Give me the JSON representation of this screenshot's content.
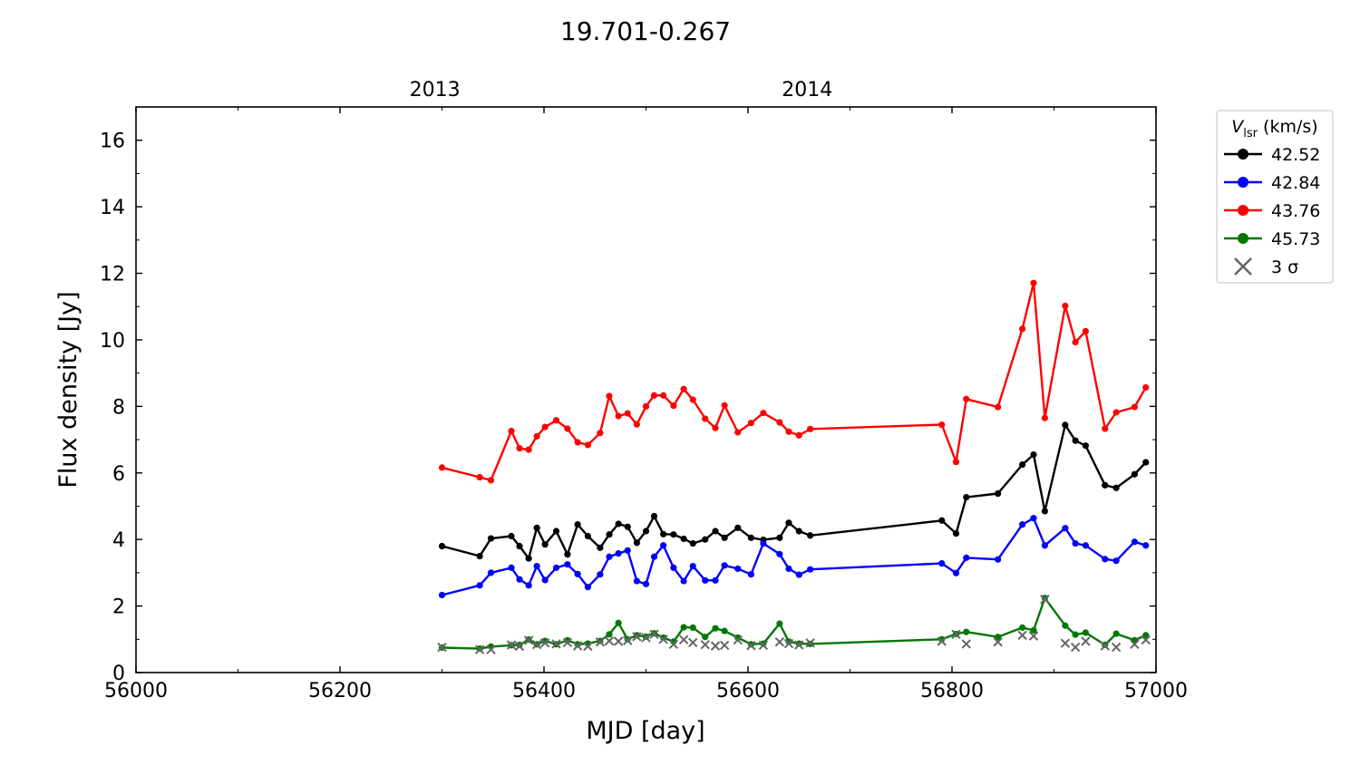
{
  "chart_data": {
    "type": "line",
    "title": "19.701-0.267",
    "xlabel": "MJD [day]",
    "ylabel": "Flux density [Jy]",
    "xlim": [
      56000,
      57000
    ],
    "ylim": [
      0,
      17
    ],
    "x_ticks": [
      56000,
      56200,
      56400,
      56600,
      56800,
      57000
    ],
    "y_ticks": [
      0,
      2,
      4,
      6,
      8,
      10,
      12,
      14,
      16
    ],
    "top_axis": {
      "ticks": [
        {
          "label": "2013",
          "x": 56293
        },
        {
          "label": "2014",
          "x": 56658
        }
      ]
    },
    "grid": false,
    "legend": {
      "title_main": "V",
      "title_sub": "lsr",
      "title_unit": " (km/s)",
      "placement": "outside-right-top"
    },
    "series": [
      {
        "name": "42.52",
        "color": "#000000",
        "x": [
          56300,
          56337,
          56348,
          56368,
          56376,
          56385,
          56393,
          56401,
          56412,
          56423,
          56433,
          56443,
          56455,
          56464,
          56473,
          56482,
          56491,
          56500,
          56508,
          56517,
          56527,
          56537,
          56546,
          56558,
          56568,
          56577,
          56590,
          56603,
          56615,
          56631,
          56640,
          56650,
          56661,
          56790,
          56804,
          56814,
          56845,
          56869,
          56880,
          56891,
          56911,
          56921,
          56931,
          56950,
          56961,
          56979,
          56990
        ],
        "values": [
          3.8,
          3.5,
          4.03,
          4.1,
          3.8,
          3.43,
          4.35,
          3.85,
          4.25,
          3.55,
          4.45,
          4.1,
          3.75,
          4.15,
          4.47,
          4.38,
          3.9,
          4.25,
          4.7,
          4.16,
          4.15,
          4.02,
          3.88,
          4.0,
          4.25,
          4.05,
          4.35,
          4.05,
          3.99,
          4.05,
          4.5,
          4.25,
          4.12,
          4.57,
          4.18,
          5.27,
          5.38,
          6.25,
          6.55,
          4.85,
          7.44,
          6.97,
          6.82,
          5.63,
          5.55,
          5.96,
          6.32
        ]
      },
      {
        "name": "42.84",
        "color": "#0000ff",
        "x": [
          56300,
          56337,
          56348,
          56368,
          56376,
          56385,
          56393,
          56401,
          56412,
          56423,
          56433,
          56443,
          56455,
          56464,
          56473,
          56482,
          56491,
          56500,
          56508,
          56517,
          56527,
          56537,
          56546,
          56558,
          56568,
          56577,
          56590,
          56603,
          56615,
          56631,
          56640,
          56650,
          56661,
          56790,
          56804,
          56814,
          56845,
          56869,
          56880,
          56891,
          56911,
          56921,
          56931,
          56950,
          56961,
          56979,
          56990
        ],
        "values": [
          2.33,
          2.62,
          3.0,
          3.15,
          2.8,
          2.62,
          3.2,
          2.78,
          3.15,
          3.25,
          2.96,
          2.57,
          2.95,
          3.48,
          3.58,
          3.67,
          2.75,
          2.66,
          3.48,
          3.82,
          3.15,
          2.75,
          3.2,
          2.77,
          2.77,
          3.22,
          3.12,
          2.95,
          3.88,
          3.56,
          3.12,
          2.94,
          3.1,
          3.28,
          2.99,
          3.45,
          3.4,
          4.45,
          4.64,
          3.82,
          4.34,
          3.88,
          3.82,
          3.41,
          3.36,
          3.93,
          3.82
        ]
      },
      {
        "name": "43.76",
        "color": "#ff0000",
        "x": [
          56300,
          56337,
          56348,
          56368,
          56376,
          56385,
          56393,
          56401,
          56412,
          56423,
          56433,
          56443,
          56455,
          56464,
          56473,
          56482,
          56491,
          56500,
          56508,
          56517,
          56527,
          56537,
          56546,
          56558,
          56568,
          56577,
          56590,
          56603,
          56615,
          56631,
          56640,
          56650,
          56661,
          56790,
          56804,
          56814,
          56845,
          56869,
          56880,
          56891,
          56911,
          56921,
          56931,
          56950,
          56961,
          56979,
          56990
        ],
        "values": [
          6.16,
          5.87,
          5.78,
          7.26,
          6.74,
          6.7,
          7.1,
          7.38,
          7.58,
          7.33,
          6.92,
          6.84,
          7.2,
          8.31,
          7.71,
          7.79,
          7.46,
          8.0,
          8.33,
          8.33,
          8.02,
          8.52,
          8.2,
          7.63,
          7.35,
          8.03,
          7.22,
          7.5,
          7.8,
          7.52,
          7.24,
          7.13,
          7.32,
          7.45,
          6.33,
          8.22,
          7.98,
          10.33,
          11.71,
          7.65,
          11.02,
          9.93,
          10.26,
          7.33,
          7.82,
          7.98,
          8.57
        ]
      },
      {
        "name": "45.73",
        "color": "#007700",
        "x": [
          56300,
          56337,
          56348,
          56368,
          56376,
          56385,
          56393,
          56401,
          56412,
          56423,
          56433,
          56443,
          56455,
          56464,
          56473,
          56482,
          56491,
          56500,
          56508,
          56517,
          56527,
          56537,
          56546,
          56558,
          56568,
          56577,
          56590,
          56603,
          56615,
          56631,
          56640,
          56650,
          56661,
          56790,
          56804,
          56814,
          56845,
          56869,
          56880,
          56891,
          56911,
          56921,
          56931,
          56950,
          56961,
          56979,
          56990
        ],
        "values": [
          0.75,
          0.72,
          0.78,
          0.82,
          0.83,
          0.99,
          0.85,
          0.95,
          0.85,
          0.97,
          0.85,
          0.87,
          0.95,
          1.15,
          1.49,
          1.0,
          1.12,
          1.08,
          1.18,
          1.05,
          0.93,
          1.36,
          1.35,
          1.07,
          1.33,
          1.25,
          1.05,
          0.85,
          0.87,
          1.47,
          0.93,
          0.87,
          0.86,
          1.0,
          1.16,
          1.22,
          1.07,
          1.35,
          1.27,
          2.24,
          1.41,
          1.14,
          1.2,
          0.83,
          1.17,
          0.97,
          1.12
        ]
      },
      {
        "name": "3 σ",
        "color": "#666666",
        "marker": "x",
        "x": [
          56300,
          56337,
          56348,
          56368,
          56376,
          56385,
          56393,
          56401,
          56412,
          56423,
          56433,
          56443,
          56455,
          56464,
          56473,
          56482,
          56491,
          56500,
          56508,
          56517,
          56527,
          56537,
          56546,
          56558,
          56568,
          56577,
          56590,
          56603,
          56615,
          56631,
          56640,
          56650,
          56661,
          56790,
          56804,
          56814,
          56845,
          56869,
          56880,
          56891,
          56911,
          56921,
          56931,
          56950,
          56961,
          56979,
          56990
        ],
        "values": [
          0.76,
          0.69,
          0.69,
          0.83,
          0.79,
          0.97,
          0.84,
          0.89,
          0.86,
          0.9,
          0.8,
          0.79,
          0.92,
          0.95,
          0.94,
          0.96,
          1.08,
          1.05,
          1.15,
          1.0,
          0.85,
          0.99,
          0.9,
          0.84,
          0.8,
          0.82,
          0.98,
          0.81,
          0.82,
          0.92,
          0.87,
          0.83,
          0.89,
          0.94,
          1.15,
          0.86,
          0.92,
          1.12,
          1.1,
          2.2,
          0.88,
          0.76,
          0.94,
          0.8,
          0.76,
          0.85,
          0.98
        ]
      }
    ]
  }
}
